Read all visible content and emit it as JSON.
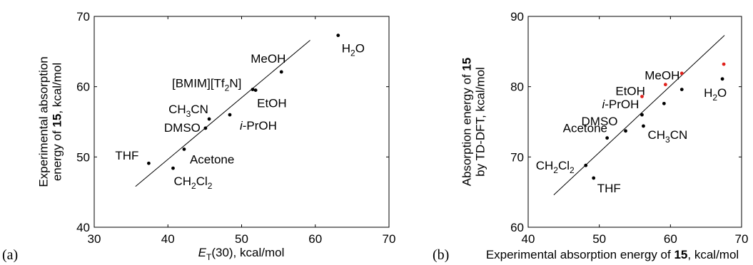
{
  "figure": {
    "panels": [
      {
        "letter": "(a)",
        "xlabel_parts": [
          {
            "text": "E",
            "italic": true
          },
          {
            "text": "T",
            "sub": true
          },
          {
            "text": "(30), kcal/mol"
          }
        ],
        "ylabel_lines": [
          [
            {
              "text": "Experimental absorption"
            }
          ],
          [
            {
              "text": "energy of "
            },
            {
              "text": "15",
              "bold": true
            },
            {
              "text": ", kcal/mol"
            }
          ]
        ]
      },
      {
        "letter": "(b)",
        "xlabel_parts": [
          {
            "text": "Experimental absorption energy of "
          },
          {
            "text": "15",
            "bold": true
          },
          {
            "text": ", kcal/mol"
          }
        ],
        "ylabel_lines": [
          [
            {
              "text": "Absorption energy of "
            },
            {
              "text": "15",
              "bold": true
            }
          ],
          [
            {
              "text": "by TD-DFT, kcal/mol"
            }
          ]
        ]
      }
    ]
  },
  "chart_data": [
    {
      "type": "scatter",
      "panel": "(a)",
      "xlim": [
        30,
        70
      ],
      "ylim": [
        40,
        70
      ],
      "xticks": [
        30,
        40,
        50,
        60,
        70
      ],
      "yticks": [
        40,
        50,
        60,
        70
      ],
      "grid": false,
      "point_color": "#000000",
      "fit_line": {
        "x": [
          35.6,
          59.3
        ],
        "y": [
          45.8,
          66.6
        ]
      },
      "points": [
        {
          "label": [
            {
              "text": "THF"
            }
          ],
          "x": 37.4,
          "y": 49.1
        },
        {
          "label": [
            {
              "text": "CH"
            },
            {
              "text": "2",
              "sub": true
            },
            {
              "text": "Cl"
            },
            {
              "text": "2",
              "sub": true
            }
          ],
          "x": 40.7,
          "y": 48.4
        },
        {
          "label": [
            {
              "text": "Acetone"
            }
          ],
          "x": 42.2,
          "y": 51.1
        },
        {
          "label": [
            {
              "text": "DMSO"
            }
          ],
          "x": 45.1,
          "y": 54.1
        },
        {
          "label": [
            {
              "text": "CH"
            },
            {
              "text": "3",
              "sub": true
            },
            {
              "text": "CN"
            }
          ],
          "x": 45.6,
          "y": 55.4
        },
        {
          "label": [
            {
              "text": "i",
              "italic": true
            },
            {
              "text": "-PrOH"
            }
          ],
          "x": 48.4,
          "y": 56.0
        },
        {
          "label": [
            {
              "text": "[BMIM][Tf"
            },
            {
              "text": "2",
              "sub": true
            },
            {
              "text": "N]"
            }
          ],
          "x": 51.5,
          "y": 59.6
        },
        {
          "label": [
            {
              "text": "EtOH"
            }
          ],
          "x": 51.9,
          "y": 59.5
        },
        {
          "label": [
            {
              "text": "MeOH"
            }
          ],
          "x": 55.4,
          "y": 62.1
        },
        {
          "label": [
            {
              "text": "H"
            },
            {
              "text": "2",
              "sub": true
            },
            {
              "text": "O"
            }
          ],
          "x": 63.1,
          "y": 67.3
        }
      ]
    },
    {
      "type": "scatter",
      "panel": "(b)",
      "xlim": [
        40,
        70
      ],
      "ylim": [
        60,
        90
      ],
      "xticks": [
        40,
        50,
        60,
        70
      ],
      "yticks": [
        60,
        70,
        80,
        90
      ],
      "grid": false,
      "colors": {
        "black": "#000000",
        "red": "#e0201b"
      },
      "fit_line": {
        "x": [
          43.6,
          67.6
        ],
        "y": [
          64.6,
          87.3
        ]
      },
      "points": [
        {
          "label": [
            {
              "text": "CH"
            },
            {
              "text": "2",
              "sub": true
            },
            {
              "text": "Cl"
            },
            {
              "text": "2",
              "sub": true
            }
          ],
          "x": 48.1,
          "y": 68.8,
          "color": "black"
        },
        {
          "label": [
            {
              "text": "THF"
            }
          ],
          "x": 49.2,
          "y": 67.0,
          "color": "black"
        },
        {
          "label": [
            {
              "text": "Acetone"
            }
          ],
          "x": 51.1,
          "y": 72.7,
          "color": "black"
        },
        {
          "label": [
            {
              "text": "DMSO"
            }
          ],
          "x": 53.7,
          "y": 73.7,
          "color": "black"
        },
        {
          "label": [
            {
              "text": "i",
              "italic": true
            },
            {
              "text": "-PrOH"
            }
          ],
          "x": 56.0,
          "y": 76.0,
          "color": "black"
        },
        {
          "label": [
            {
              "text": "CH"
            },
            {
              "text": "3",
              "sub": true
            },
            {
              "text": "CN"
            }
          ],
          "x": 56.2,
          "y": 74.4,
          "color": "black"
        },
        {
          "label": [
            {
              "text": "EtOH"
            }
          ],
          "x": 59.1,
          "y": 77.6,
          "color": "black"
        },
        {
          "label": [
            {
              "text": "MeOH"
            }
          ],
          "x": 61.6,
          "y": 79.6,
          "color": "black"
        },
        {
          "label": [
            {
              "text": "H"
            },
            {
              "text": "2",
              "sub": true
            },
            {
              "text": "O"
            }
          ],
          "x": 67.3,
          "y": 81.1,
          "color": "black"
        },
        {
          "x": 56.0,
          "y": 78.6,
          "color": "red"
        },
        {
          "x": 59.3,
          "y": 80.3,
          "color": "red"
        },
        {
          "x": 61.6,
          "y": 81.9,
          "color": "red"
        },
        {
          "x": 67.5,
          "y": 83.2,
          "color": "red"
        }
      ]
    }
  ]
}
